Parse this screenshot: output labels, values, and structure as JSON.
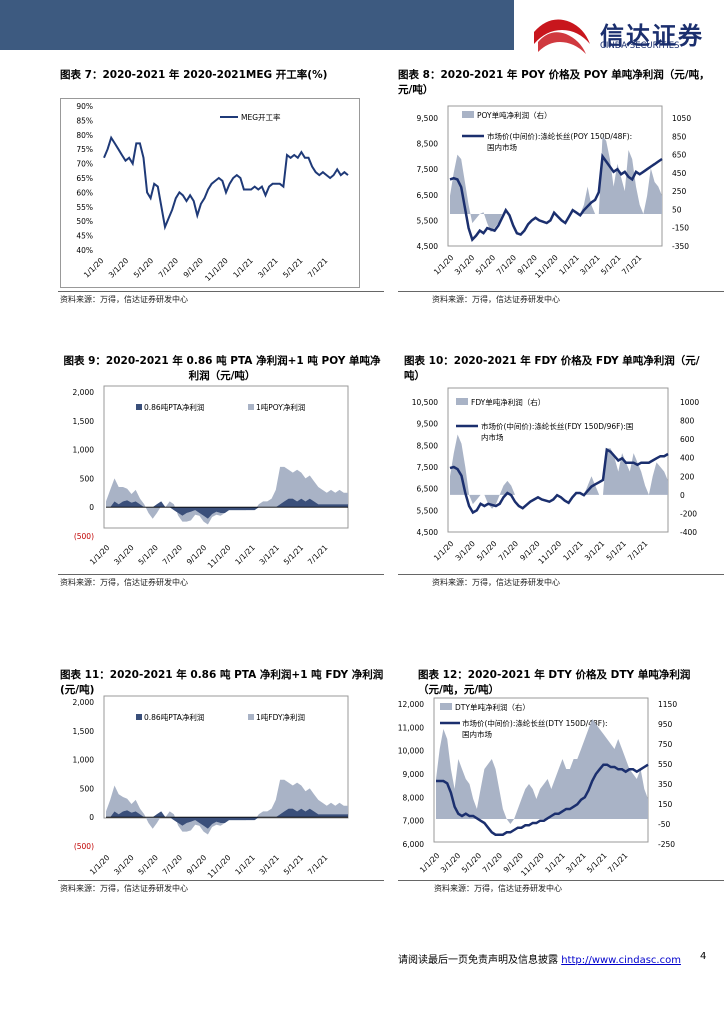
{
  "header": {
    "logo_cn": "信达证券",
    "logo_en": "CINDA SECURITIES",
    "colors": {
      "band": "#3d5a80",
      "logo_red": "#c8161d",
      "logo_blue": "#1b2f6e"
    }
  },
  "figures": [
    {
      "title": "图表 7：2020-2021 年 2020-2021MEG 开工率(%)",
      "source": "资料来源：万得，信达证券研发中心"
    },
    {
      "title": "图表 8：2020-2021 年 POY 价格及 POY 单吨净利润（元/吨，元/吨）",
      "source": "资料来源：万得，信达证券研发中心"
    },
    {
      "title": "图表 9：2020-2021 年 0.86 吨 PTA 净利润+1 吨 POY 单吨净利润（元/吨）",
      "source": "资料来源：万得，信达证券研发中心"
    },
    {
      "title": "图表 10：2020-2021 年 FDY 价格及 FDY 单吨净利润（元/吨）",
      "source": "资料来源：万得，信达证券研发中心"
    },
    {
      "title": "图表 11：2020-2021 年 0.86 吨 PTA 净利润+1 吨 FDY 净利润(元/吨)",
      "source": "资料来源：万得，信达证券研发中心"
    },
    {
      "title": "图表 12：2020-2021 年 DTY 价格及 DTY 单吨净利润（元/吨，元/吨）",
      "source": "资料来源：万得，信达证券研发中心"
    }
  ],
  "chart_data": [
    {
      "type": "line",
      "title": "MEG开工率",
      "series": [
        {
          "name": "MEG开工率",
          "color": "#1f3a78",
          "values": [
            72,
            75,
            79,
            77,
            75,
            73,
            71,
            72,
            70,
            77,
            77,
            72,
            60,
            58,
            63,
            62,
            55,
            48,
            51,
            54,
            58,
            60,
            59,
            57,
            59,
            57,
            52,
            56,
            58,
            61,
            63,
            64,
            65,
            64,
            60,
            63,
            65,
            66,
            65,
            61,
            61,
            61,
            62,
            61,
            62,
            59,
            62,
            63,
            63,
            63,
            62,
            73,
            72,
            73,
            72,
            74,
            72,
            72,
            69,
            67,
            66,
            67,
            66,
            65,
            66,
            68,
            66,
            67,
            66
          ]
        }
      ],
      "x_ticks": [
        "1/1/20",
        "3/1/20",
        "5/1/20",
        "7/1/20",
        "9/1/20",
        "11/1/20",
        "1/1/21",
        "3/1/21",
        "5/1/21",
        "7/1/21"
      ],
      "y_ticks": [
        "90%",
        "85%",
        "80%",
        "75%",
        "70%",
        "65%",
        "60%",
        "55%",
        "50%",
        "45%",
        "40%"
      ],
      "ylim": [
        40,
        90
      ]
    },
    {
      "type": "line+area",
      "legend": [
        "POY单吨净利润（右）",
        "市场价(中间价):涤纶长丝(POY 150D/48F):国内市场"
      ],
      "price": [
        7100,
        7150,
        7100,
        6800,
        6000,
        5200,
        4750,
        4900,
        5100,
        5000,
        5200,
        5150,
        5100,
        5300,
        5600,
        5900,
        5700,
        5300,
        5000,
        4950,
        5100,
        5350,
        5500,
        5600,
        5500,
        5450,
        5400,
        5500,
        5800,
        5650,
        5500,
        5400,
        5650,
        5900,
        5800,
        5700,
        5900,
        6050,
        6200,
        6300,
        6600,
        8000,
        7800,
        7600,
        7400,
        7500,
        7300,
        7400,
        7200,
        7100,
        7400,
        7300,
        7400,
        7500,
        7600,
        7700,
        7800,
        7900
      ],
      "profit": [
        200,
        450,
        650,
        600,
        350,
        100,
        -100,
        -50,
        0,
        20,
        -100,
        -200,
        -150,
        -100,
        0,
        0,
        0,
        0,
        0,
        0,
        0,
        0,
        0,
        0,
        0,
        0,
        0,
        0,
        0,
        0,
        0,
        0,
        0,
        0,
        0,
        0,
        100,
        300,
        100,
        0,
        0,
        850,
        800,
        600,
        300,
        550,
        400,
        250,
        700,
        600,
        300,
        100,
        0,
        200,
        500,
        350,
        300,
        200
      ],
      "left_ticks": [
        "9,500",
        "8,500",
        "7,500",
        "6,500",
        "5,500",
        "4,500"
      ],
      "right_ticks": [
        "1050",
        "850",
        "650",
        "450",
        "250",
        "50",
        "-150",
        "-350"
      ],
      "x_ticks": [
        "1/1/20",
        "3/1/20",
        "5/1/20",
        "7/1/20",
        "9/1/20",
        "11/1/20",
        "1/1/21",
        "3/1/21",
        "5/1/21",
        "7/1/21"
      ],
      "left_lim": [
        4500,
        9500
      ],
      "right_lim": [
        -350,
        1050
      ]
    },
    {
      "type": "stacked_area",
      "legend": [
        "0.86吨PTA净利润",
        "1吨POY净利润"
      ],
      "pta": [
        0,
        0,
        100,
        50,
        100,
        120,
        80,
        100,
        50,
        0,
        0,
        0,
        50,
        100,
        0,
        0,
        -50,
        -100,
        -150,
        -100,
        -80,
        -50,
        -100,
        -150,
        -200,
        -120,
        -80,
        -100,
        -100,
        -50,
        -50,
        -50,
        -50,
        -50,
        -50,
        -50,
        0,
        0,
        0,
        0,
        0,
        50,
        100,
        150,
        150,
        100,
        150,
        100,
        150,
        100,
        50,
        50,
        50,
        50,
        50,
        50,
        50,
        50
      ],
      "poy": [
        100,
        300,
        400,
        300,
        250,
        200,
        150,
        200,
        100,
        50,
        -100,
        -200,
        -150,
        -80,
        0,
        100,
        100,
        -50,
        -100,
        -150,
        -150,
        -80,
        -50,
        -100,
        -100,
        -50,
        -50,
        -50,
        0,
        0,
        50,
        50,
        50,
        0,
        0,
        0,
        50,
        100,
        100,
        150,
        300,
        650,
        600,
        500,
        450,
        550,
        450,
        400,
        400,
        350,
        300,
        250,
        200,
        250,
        200,
        250,
        200,
        200
      ],
      "y_ticks": [
        "2,000",
        "1,500",
        "1,000",
        "500",
        "0",
        "(500)"
      ],
      "x_ticks": [
        "1/1/20",
        "3/1/20",
        "5/1/20",
        "7/1/20",
        "9/1/20",
        "11/1/20",
        "1/1/21",
        "3/1/21",
        "5/1/21",
        "7/1/21"
      ],
      "ylim": [
        -500,
        2000
      ]
    },
    {
      "type": "line+area",
      "legend": [
        "FDY单吨净利润（右）",
        "市场价(中间价):涤纶长丝(FDY 150D/96F):国内市场"
      ],
      "price": [
        7450,
        7500,
        7400,
        7100,
        6300,
        5700,
        5400,
        5500,
        5800,
        5700,
        5800,
        5750,
        5700,
        5800,
        6100,
        6300,
        6200,
        5900,
        5700,
        5600,
        5750,
        5900,
        6000,
        6100,
        6000,
        5950,
        5900,
        6000,
        6200,
        6100,
        5950,
        5850,
        6100,
        6300,
        6300,
        6200,
        6400,
        6600,
        6700,
        6800,
        6900,
        8300,
        8200,
        8000,
        7800,
        7900,
        7700,
        7700,
        7700,
        7600,
        7700,
        7700,
        7700,
        7800,
        7900,
        8000,
        8000,
        8100
      ],
      "profit": [
        200,
        450,
        650,
        550,
        300,
        0,
        -100,
        -50,
        0,
        0,
        -100,
        -150,
        -100,
        0,
        100,
        150,
        100,
        0,
        0,
        0,
        0,
        0,
        0,
        0,
        0,
        0,
        0,
        0,
        0,
        0,
        0,
        0,
        0,
        0,
        0,
        0,
        100,
        200,
        100,
        0,
        0,
        500,
        500,
        400,
        250,
        450,
        350,
        250,
        450,
        350,
        250,
        100,
        0,
        200,
        350,
        300,
        250,
        150
      ],
      "left_ticks": [
        "10,500",
        "9,500",
        "8,500",
        "7,500",
        "6,500",
        "5,500",
        "4,500"
      ],
      "right_ticks": [
        "1000",
        "800",
        "600",
        "400",
        "200",
        "0",
        "-200",
        "-400"
      ],
      "x_ticks": [
        "1/1/20",
        "3/1/20",
        "5/1/20",
        "7/1/20",
        "9/1/20",
        "11/1/20",
        "1/1/21",
        "3/1/21",
        "5/1/21",
        "7/1/21"
      ],
      "left_lim": [
        4500,
        10500
      ],
      "right_lim": [
        -400,
        1000
      ]
    },
    {
      "type": "stacked_area",
      "legend": [
        "0.86吨PTA净利润",
        "1吨FDY净利润"
      ],
      "pta": [
        0,
        0,
        100,
        50,
        100,
        120,
        80,
        100,
        50,
        0,
        0,
        0,
        50,
        100,
        0,
        0,
        -50,
        -100,
        -150,
        -100,
        -80,
        -50,
        -100,
        -150,
        -200,
        -120,
        -80,
        -100,
        -100,
        -50,
        -50,
        -50,
        -50,
        -50,
        -50,
        -50,
        0,
        0,
        0,
        0,
        0,
        50,
        100,
        150,
        150,
        100,
        150,
        100,
        150,
        100,
        50,
        50,
        50,
        50,
        50,
        50,
        50,
        50
      ],
      "fdy": [
        100,
        300,
        450,
        350,
        250,
        200,
        150,
        200,
        100,
        50,
        -100,
        -200,
        -150,
        -80,
        0,
        100,
        100,
        -50,
        -100,
        -150,
        -150,
        -80,
        -50,
        -100,
        -100,
        -50,
        -50,
        -50,
        0,
        0,
        50,
        50,
        50,
        0,
        0,
        0,
        50,
        100,
        100,
        150,
        300,
        600,
        550,
        450,
        400,
        500,
        400,
        350,
        350,
        300,
        250,
        200,
        150,
        200,
        150,
        200,
        150,
        150
      ],
      "y_ticks": [
        "2,000",
        "1,500",
        "1,000",
        "500",
        "0",
        "(500)"
      ],
      "x_ticks": [
        "1/1/20",
        "3/1/20",
        "5/1/20",
        "7/1/20",
        "9/1/20",
        "11/1/20",
        "1/1/21",
        "3/1/21",
        "5/1/21",
        "7/1/21"
      ],
      "ylim": [
        -500,
        2000
      ]
    },
    {
      "type": "line+area",
      "legend": [
        "DTY单吨净利润（右）",
        "市场价(中间价):涤纶长丝(DTY 150D/48F):国内市场"
      ],
      "price": [
        8700,
        8700,
        8700,
        8600,
        8200,
        7600,
        7300,
        7200,
        7300,
        7200,
        7200,
        7100,
        7000,
        6900,
        6700,
        6500,
        6400,
        6400,
        6400,
        6500,
        6500,
        6600,
        6700,
        6700,
        6800,
        6800,
        6900,
        6900,
        7000,
        7000,
        7100,
        7200,
        7300,
        7300,
        7400,
        7500,
        7500,
        7600,
        7700,
        7900,
        8000,
        8300,
        8700,
        9000,
        9200,
        9400,
        9400,
        9300,
        9300,
        9200,
        9200,
        9100,
        9200,
        9200,
        9100,
        9200,
        9300,
        9400
      ],
      "profit": [
        400,
        700,
        900,
        800,
        500,
        300,
        600,
        500,
        400,
        350,
        200,
        100,
        300,
        500,
        550,
        600,
        500,
        300,
        100,
        0,
        -50,
        0,
        100,
        200,
        300,
        350,
        300,
        200,
        300,
        350,
        400,
        300,
        400,
        500,
        600,
        500,
        500,
        600,
        600,
        700,
        800,
        900,
        1000,
        950,
        900,
        850,
        800,
        750,
        700,
        800,
        700,
        600,
        500,
        450,
        400,
        500,
        300,
        200
      ],
      "left_ticks": [
        "12,000",
        "11,000",
        "10,000",
        "9,000",
        "8,000",
        "7,000",
        "6,000"
      ],
      "right_ticks": [
        "1150",
        "950",
        "750",
        "550",
        "350",
        "150",
        "-50",
        "-250"
      ],
      "x_ticks": [
        "1/1/20",
        "3/1/20",
        "5/1/20",
        "7/1/20",
        "9/1/20",
        "11/1/20",
        "1/1/21",
        "3/1/21",
        "5/1/21",
        "7/1/21"
      ],
      "left_lim": [
        6000,
        12000
      ],
      "right_lim": [
        -250,
        1150
      ]
    }
  ],
  "footer": {
    "text": "请阅读最后一页免责声明及信息披露",
    "url": "http://www.cindasc.com",
    "page": "4"
  }
}
